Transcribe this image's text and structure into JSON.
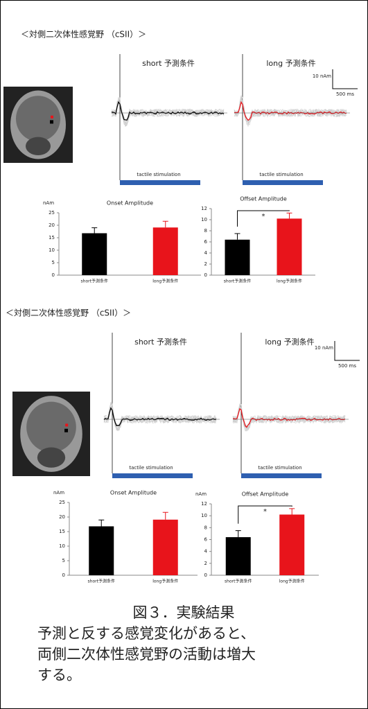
{
  "panels": [
    {
      "heading": "＜対側二次体性感覚野 （cSII）＞",
      "short_label": "short 予測条件",
      "long_label": "long 予測条件",
      "scale_amp": "10 nAm",
      "scale_time": "500 ms",
      "stim_short": "tactile stimulation",
      "stim_long": "tactile stimulation"
    },
    {
      "heading": "＜対側二次体性感覚野 （cSII）＞",
      "short_label": "short 予測条件",
      "long_label": "long 予測条件",
      "scale_amp": "10 nAm",
      "scale_time": "500 ms",
      "stim_short": "tactile stimulation",
      "stim_long": "tactile stimulation"
    }
  ],
  "chart_data": [
    {
      "type": "bar",
      "title": "Onset Amplitude",
      "ylabel": "nAm",
      "categories": [
        "short予測条件",
        "long予測条件"
      ],
      "values": [
        16.8,
        19.1
      ],
      "errors": [
        2.2,
        2.5
      ],
      "colors": [
        "#000000",
        "#e8141b"
      ],
      "ylim": [
        0,
        25
      ],
      "yticks": [
        0,
        5,
        10,
        15,
        20,
        25
      ]
    },
    {
      "type": "bar",
      "title": "Offset Amplitude",
      "categories": [
        "short予測条件",
        "long予測条件"
      ],
      "values": [
        6.4,
        10.2
      ],
      "errors": [
        1.1,
        1.0
      ],
      "colors": [
        "#000000",
        "#e8141b"
      ],
      "ylim": [
        0,
        12
      ],
      "yticks": [
        0,
        2,
        4,
        6,
        8,
        10,
        12
      ],
      "significance": "*"
    },
    {
      "type": "bar",
      "title": "Onset Amplitude",
      "ylabel": "nAm",
      "categories": [
        "short予測条件",
        "long予測条件"
      ],
      "values": [
        16.8,
        19.1
      ],
      "errors": [
        2.2,
        2.5
      ],
      "colors": [
        "#000000",
        "#e8141b"
      ],
      "ylim": [
        0,
        25
      ],
      "yticks": [
        0,
        5,
        10,
        15,
        20,
        25
      ]
    },
    {
      "type": "bar",
      "title": "Offset Amplitude",
      "ylabel": "nAm",
      "categories": [
        "short予測条件",
        "long予測条件"
      ],
      "values": [
        6.4,
        10.2
      ],
      "errors": [
        1.1,
        1.0
      ],
      "colors": [
        "#000000",
        "#e8141b"
      ],
      "ylim": [
        0,
        12
      ],
      "yticks": [
        0,
        2,
        4,
        6,
        8,
        10,
        12
      ],
      "significance": "*"
    }
  ],
  "caption": {
    "title": "図３．実験結果",
    "lines": [
      "予測と反する感覚変化があると、",
      "両側二次体性感覚野の活動は増大",
      "する。"
    ]
  }
}
